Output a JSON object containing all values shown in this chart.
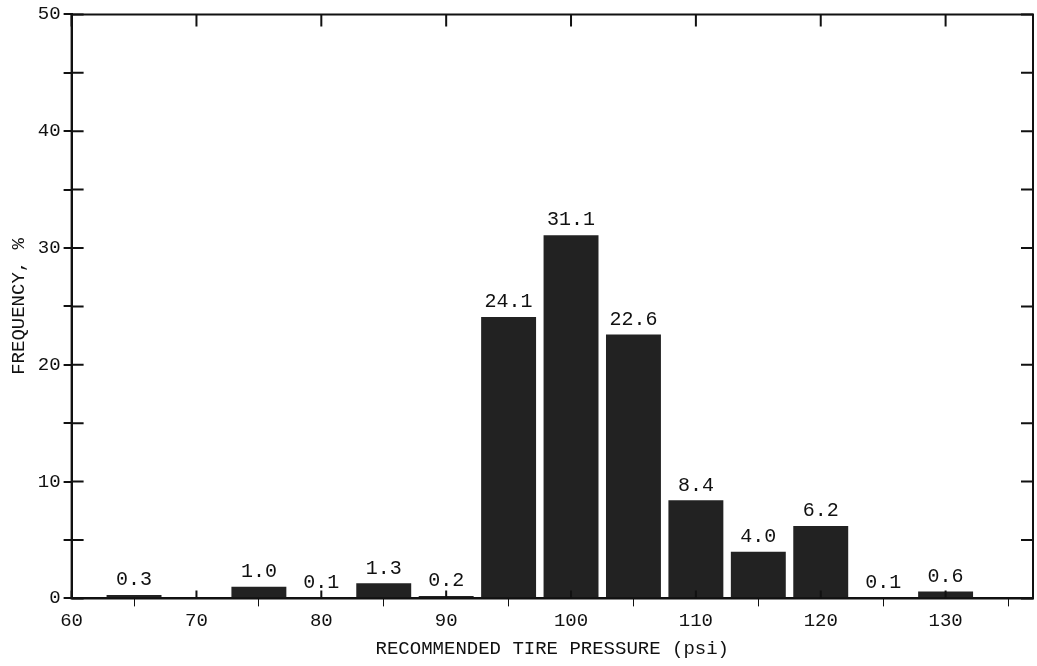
{
  "chart_data": {
    "type": "bar",
    "xlabel": "RECOMMENDED TIRE PRESSURE (psi)",
    "ylabel": "FREQUENCY, %",
    "x": [
      65,
      75,
      80,
      85,
      90,
      95,
      100,
      105,
      110,
      115,
      120,
      125,
      130
    ],
    "values": [
      0.3,
      1.0,
      0.1,
      1.3,
      0.2,
      24.1,
      31.1,
      22.6,
      8.4,
      4.0,
      6.2,
      0.1,
      0.6
    ],
    "value_labels": [
      "0.3",
      "1.0",
      "0.1",
      "1.3",
      "0.2",
      "24.1",
      "31.1",
      "22.6",
      "8.4",
      "4.0",
      "6.2",
      "0.1",
      "0.6"
    ],
    "color": "#222222",
    "xlim": [
      60,
      137
    ],
    "xticks": [
      60,
      70,
      80,
      90,
      100,
      110,
      120,
      130
    ],
    "ylim": [
      0,
      50
    ],
    "yticks": [
      0,
      {
        "value": 5,
        "label": null
      },
      10,
      {
        "value": 15,
        "label": null
      },
      20,
      {
        "value": 25,
        "label": null
      },
      30,
      {
        "value": 35,
        "label": null
      },
      40,
      {
        "value": 45,
        "label": null
      },
      50
    ],
    "grid": false,
    "legend": false
  }
}
